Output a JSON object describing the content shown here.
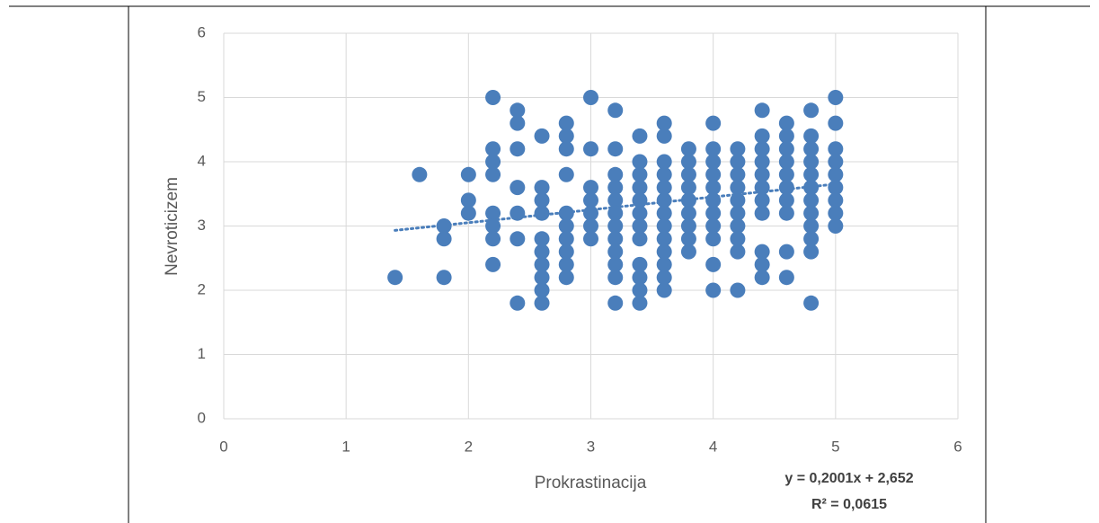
{
  "chart_data": {
    "type": "scatter",
    "x_label": "Prokrastinacija",
    "y_label": "Nevroticizem",
    "color": "#4a7ebb",
    "grid": true,
    "xlim": [
      0,
      6
    ],
    "xticks": [
      0,
      1,
      2,
      3,
      4,
      5,
      6
    ],
    "ylim": [
      0,
      6
    ],
    "yticks": [
      0,
      1,
      2,
      3,
      4,
      5,
      6
    ],
    "x": [
      1.4,
      1.6,
      1.8,
      1.8,
      1.8,
      2.0,
      2.0,
      2.0,
      2.2,
      2.2,
      2.2,
      2.2,
      2.2,
      2.2,
      2.2,
      2.2,
      2.4,
      2.4,
      2.4,
      2.4,
      2.4,
      2.4,
      2.4,
      2.6,
      2.6,
      2.6,
      2.6,
      2.6,
      2.6,
      2.6,
      2.6,
      2.6,
      2.6,
      2.8,
      2.8,
      2.8,
      2.8,
      2.8,
      2.8,
      2.8,
      2.8,
      2.8,
      2.8,
      3.0,
      3.0,
      3.0,
      3.0,
      3.0,
      3.0,
      3.0,
      3.2,
      3.2,
      3.2,
      3.2,
      3.2,
      3.2,
      3.2,
      3.2,
      3.2,
      3.2,
      3.2,
      3.2,
      3.4,
      3.4,
      3.4,
      3.4,
      3.4,
      3.4,
      3.4,
      3.4,
      3.4,
      3.4,
      3.4,
      3.4,
      3.6,
      3.6,
      3.6,
      3.6,
      3.6,
      3.6,
      3.6,
      3.6,
      3.6,
      3.6,
      3.6,
      3.6,
      3.6,
      3.8,
      3.8,
      3.8,
      3.8,
      3.8,
      3.8,
      3.8,
      3.8,
      3.8,
      4.0,
      4.0,
      4.0,
      4.0,
      4.0,
      4.0,
      4.0,
      4.0,
      4.0,
      4.0,
      4.0,
      4.2,
      4.2,
      4.2,
      4.2,
      4.2,
      4.2,
      4.2,
      4.2,
      4.2,
      4.2,
      4.4,
      4.4,
      4.4,
      4.4,
      4.4,
      4.4,
      4.4,
      4.4,
      4.4,
      4.4,
      4.4,
      4.6,
      4.6,
      4.6,
      4.6,
      4.6,
      4.6,
      4.6,
      4.6,
      4.6,
      4.6,
      4.8,
      4.8,
      4.8,
      4.8,
      4.8,
      4.8,
      4.8,
      4.8,
      4.8,
      4.8,
      4.8,
      4.8,
      5.0,
      5.0,
      5.0,
      5.0,
      5.0,
      5.0,
      5.0,
      5.0,
      5.0
    ],
    "values": [
      2.2,
      3.8,
      3.0,
      2.8,
      2.2,
      3.8,
      3.4,
      3.2,
      5.0,
      4.2,
      4.0,
      3.8,
      3.2,
      3.0,
      2.8,
      2.4,
      4.8,
      4.6,
      4.2,
      3.6,
      3.2,
      2.8,
      1.8,
      4.4,
      3.6,
      3.4,
      3.2,
      2.8,
      2.6,
      2.4,
      2.2,
      2.0,
      1.8,
      4.6,
      4.4,
      4.2,
      3.8,
      3.2,
      3.0,
      2.8,
      2.6,
      2.4,
      2.2,
      5.0,
      4.2,
      3.6,
      3.4,
      3.2,
      3.0,
      2.8,
      4.8,
      4.2,
      3.8,
      3.6,
      3.4,
      3.2,
      3.0,
      2.8,
      2.6,
      2.4,
      2.2,
      1.8,
      4.4,
      4.0,
      3.8,
      3.6,
      3.4,
      3.2,
      3.0,
      2.8,
      2.4,
      2.2,
      2.0,
      1.8,
      4.6,
      4.4,
      4.0,
      3.8,
      3.6,
      3.4,
      3.2,
      3.0,
      2.8,
      2.6,
      2.4,
      2.2,
      2.0,
      4.2,
      4.0,
      3.8,
      3.6,
      3.4,
      3.2,
      3.0,
      2.8,
      2.6,
      4.6,
      4.2,
      4.0,
      3.8,
      3.6,
      3.4,
      3.2,
      3.0,
      2.8,
      2.4,
      2.0,
      4.2,
      4.0,
      3.8,
      3.6,
      3.4,
      3.2,
      3.0,
      2.8,
      2.6,
      2.0,
      4.8,
      4.4,
      4.2,
      4.0,
      3.8,
      3.6,
      3.4,
      3.2,
      2.6,
      2.4,
      2.2,
      4.6,
      4.4,
      4.2,
      4.0,
      3.8,
      3.6,
      3.4,
      3.2,
      2.6,
      2.2,
      4.8,
      4.4,
      4.2,
      4.0,
      3.8,
      3.6,
      3.4,
      3.2,
      3.0,
      2.8,
      2.6,
      1.8,
      5.0,
      4.6,
      4.2,
      4.0,
      3.8,
      3.6,
      3.4,
      3.2,
      3.0
    ],
    "trendline": {
      "slope": 0.2001,
      "intercept": 2.652,
      "equation": "y = 0,2001x + 2,652",
      "r2": "R² = 0,0615"
    }
  }
}
